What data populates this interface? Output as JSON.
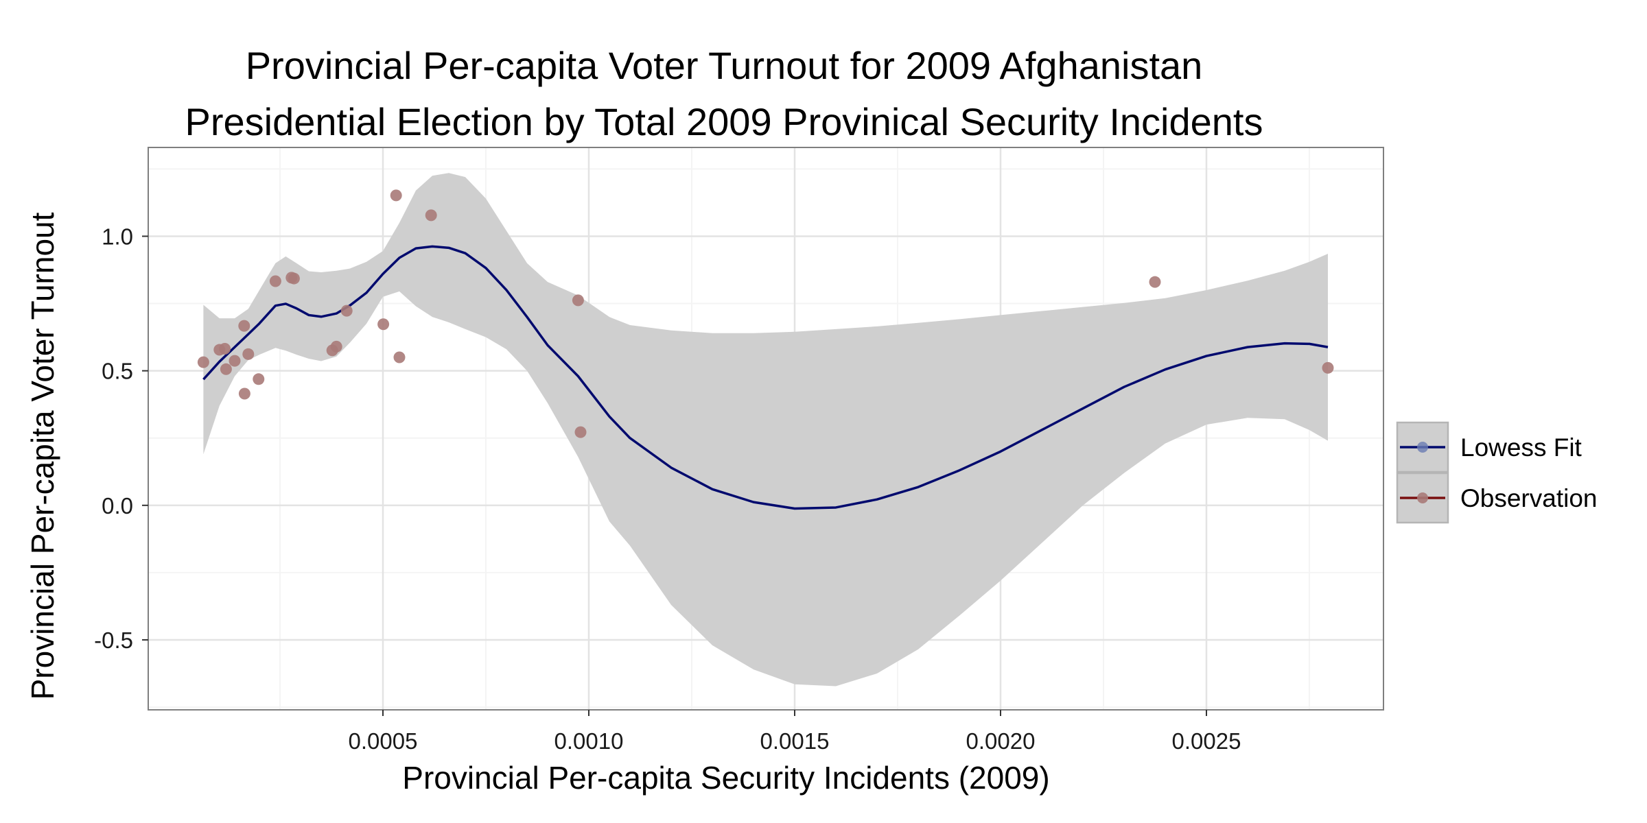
{
  "chart_data": {
    "type": "scatter",
    "title_lines": [
      "Provincial Per-capita Voter Turnout for 2009 Afghanistan",
      "Presidential Election by Total 2009 Provinical Security Incidents"
    ],
    "xlabel": "Provincial Per-capita Security Incidents (2009)",
    "ylabel": "Provincial Per-capita Voter Turnout",
    "xlim": [
      -7e-05,
      0.00293
    ],
    "ylim": [
      -0.76,
      1.33
    ],
    "x_ticks": [
      0.0005,
      0.001,
      0.0015,
      0.002,
      0.0025
    ],
    "x_tick_labels": [
      "0.0005",
      "0.0010",
      "0.0015",
      "0.0020",
      "0.0025"
    ],
    "y_ticks": [
      -0.5,
      0.0,
      0.5,
      1.0
    ],
    "y_tick_labels": [
      "-0.5",
      "0.0",
      "0.5",
      "1.0"
    ],
    "grid": true,
    "legend_position": "right",
    "legend": [
      "Lowess Fit",
      "Observation"
    ],
    "colors": {
      "fit": "#000a6e",
      "points": "#a87a78",
      "observation_legend": "#7a1010",
      "band": "#cfcfcf",
      "panel_border": "#7f7f7f",
      "grid_major": "#e3e3e3",
      "grid_minor": "#f4f4f4"
    },
    "series": [
      {
        "name": "Observation",
        "kind": "points",
        "points": [
          [
            6.4e-05,
            0.532
          ],
          [
            0.000103,
            0.578
          ],
          [
            0.000116,
            0.582
          ],
          [
            0.000119,
            0.506
          ],
          [
            0.00014,
            0.537
          ],
          [
            0.000163,
            0.667
          ],
          [
            0.000164,
            0.415
          ],
          [
            0.000173,
            0.562
          ],
          [
            0.000198,
            0.469
          ],
          [
            0.000239,
            0.833
          ],
          [
            0.000278,
            0.846
          ],
          [
            0.000284,
            0.843
          ],
          [
            0.000377,
            0.576
          ],
          [
            0.000387,
            0.59
          ],
          [
            0.000412,
            0.723
          ],
          [
            0.000501,
            0.673
          ],
          [
            0.000532,
            1.152
          ],
          [
            0.00054,
            0.55
          ],
          [
            0.000617,
            1.078
          ],
          [
            0.000974,
            0.762
          ],
          [
            0.00098,
            0.272
          ],
          [
            0.002375,
            0.83
          ],
          [
            0.002795,
            0.511
          ]
        ]
      },
      {
        "name": "Lowess Fit",
        "kind": "line",
        "points": [
          [
            6.4e-05,
            0.468
          ],
          [
            0.000103,
            0.534
          ],
          [
            0.00014,
            0.588
          ],
          [
            0.000173,
            0.636
          ],
          [
            0.0002,
            0.676
          ],
          [
            0.000239,
            0.742
          ],
          [
            0.000264,
            0.749
          ],
          [
            0.00029,
            0.732
          ],
          [
            0.00032,
            0.707
          ],
          [
            0.00035,
            0.701
          ],
          [
            0.000387,
            0.713
          ],
          [
            0.00042,
            0.743
          ],
          [
            0.00046,
            0.79
          ],
          [
            0.0005,
            0.86
          ],
          [
            0.00054,
            0.92
          ],
          [
            0.00058,
            0.955
          ],
          [
            0.00062,
            0.962
          ],
          [
            0.00066,
            0.957
          ],
          [
            0.0007,
            0.937
          ],
          [
            0.00075,
            0.882
          ],
          [
            0.0008,
            0.8
          ],
          [
            0.00085,
            0.7
          ],
          [
            0.0009,
            0.595
          ],
          [
            0.000974,
            0.48
          ],
          [
            0.00105,
            0.33
          ],
          [
            0.0011,
            0.25
          ],
          [
            0.0012,
            0.14
          ],
          [
            0.0013,
            0.06
          ],
          [
            0.0014,
            0.012
          ],
          [
            0.0015,
            -0.012
          ],
          [
            0.0016,
            -0.008
          ],
          [
            0.0017,
            0.022
          ],
          [
            0.0018,
            0.068
          ],
          [
            0.0019,
            0.13
          ],
          [
            0.002,
            0.2
          ],
          [
            0.0021,
            0.28
          ],
          [
            0.0022,
            0.36
          ],
          [
            0.0023,
            0.44
          ],
          [
            0.0024,
            0.505
          ],
          [
            0.0025,
            0.555
          ],
          [
            0.0026,
            0.588
          ],
          [
            0.00269,
            0.602
          ],
          [
            0.00275,
            0.6
          ],
          [
            0.002795,
            0.588
          ]
        ]
      },
      {
        "name": "Lowess Fit band upper",
        "kind": "band_upper",
        "points": [
          [
            6.4e-05,
            0.745
          ],
          [
            0.000103,
            0.695
          ],
          [
            0.00014,
            0.695
          ],
          [
            0.000173,
            0.73
          ],
          [
            0.0002,
            0.8
          ],
          [
            0.000239,
            0.9
          ],
          [
            0.000264,
            0.925
          ],
          [
            0.00029,
            0.9
          ],
          [
            0.00032,
            0.87
          ],
          [
            0.00035,
            0.866
          ],
          [
            0.000387,
            0.872
          ],
          [
            0.00042,
            0.88
          ],
          [
            0.00046,
            0.905
          ],
          [
            0.0005,
            0.945
          ],
          [
            0.00054,
            1.05
          ],
          [
            0.00058,
            1.17
          ],
          [
            0.00062,
            1.225
          ],
          [
            0.00066,
            1.235
          ],
          [
            0.0007,
            1.22
          ],
          [
            0.00075,
            1.14
          ],
          [
            0.0008,
            1.02
          ],
          [
            0.00085,
            0.9
          ],
          [
            0.0009,
            0.83
          ],
          [
            0.000974,
            0.78
          ],
          [
            0.00105,
            0.7
          ],
          [
            0.0011,
            0.67
          ],
          [
            0.0012,
            0.65
          ],
          [
            0.0013,
            0.64
          ],
          [
            0.0014,
            0.64
          ],
          [
            0.0015,
            0.645
          ],
          [
            0.0016,
            0.655
          ],
          [
            0.0017,
            0.665
          ],
          [
            0.0018,
            0.678
          ],
          [
            0.0019,
            0.692
          ],
          [
            0.002,
            0.707
          ],
          [
            0.0021,
            0.722
          ],
          [
            0.0022,
            0.737
          ],
          [
            0.0023,
            0.752
          ],
          [
            0.0024,
            0.77
          ],
          [
            0.0025,
            0.8
          ],
          [
            0.0026,
            0.835
          ],
          [
            0.00269,
            0.872
          ],
          [
            0.00275,
            0.905
          ],
          [
            0.002795,
            0.935
          ]
        ]
      },
      {
        "name": "Lowess Fit band lower",
        "kind": "band_lower",
        "points": [
          [
            6.4e-05,
            0.19
          ],
          [
            0.000103,
            0.37
          ],
          [
            0.00014,
            0.48
          ],
          [
            0.000173,
            0.54
          ],
          [
            0.0002,
            0.56
          ],
          [
            0.000239,
            0.585
          ],
          [
            0.000264,
            0.575
          ],
          [
            0.00029,
            0.56
          ],
          [
            0.00032,
            0.545
          ],
          [
            0.00035,
            0.536
          ],
          [
            0.000387,
            0.553
          ],
          [
            0.00042,
            0.605
          ],
          [
            0.00046,
            0.675
          ],
          [
            0.0005,
            0.775
          ],
          [
            0.00054,
            0.795
          ],
          [
            0.00058,
            0.74
          ],
          [
            0.00062,
            0.7
          ],
          [
            0.00066,
            0.68
          ],
          [
            0.0007,
            0.655
          ],
          [
            0.00075,
            0.625
          ],
          [
            0.0008,
            0.58
          ],
          [
            0.00085,
            0.5
          ],
          [
            0.0009,
            0.38
          ],
          [
            0.000974,
            0.18
          ],
          [
            0.00105,
            -0.06
          ],
          [
            0.0011,
            -0.15
          ],
          [
            0.0012,
            -0.37
          ],
          [
            0.0013,
            -0.52
          ],
          [
            0.0014,
            -0.61
          ],
          [
            0.0015,
            -0.665
          ],
          [
            0.0016,
            -0.672
          ],
          [
            0.0017,
            -0.625
          ],
          [
            0.0018,
            -0.535
          ],
          [
            0.0019,
            -0.41
          ],
          [
            0.002,
            -0.28
          ],
          [
            0.0021,
            -0.14
          ],
          [
            0.0022,
            0.0
          ],
          [
            0.0023,
            0.12
          ],
          [
            0.0024,
            0.23
          ],
          [
            0.0025,
            0.3
          ],
          [
            0.0026,
            0.325
          ],
          [
            0.00269,
            0.32
          ],
          [
            0.00275,
            0.28
          ],
          [
            0.002795,
            0.24
          ]
        ]
      }
    ]
  }
}
